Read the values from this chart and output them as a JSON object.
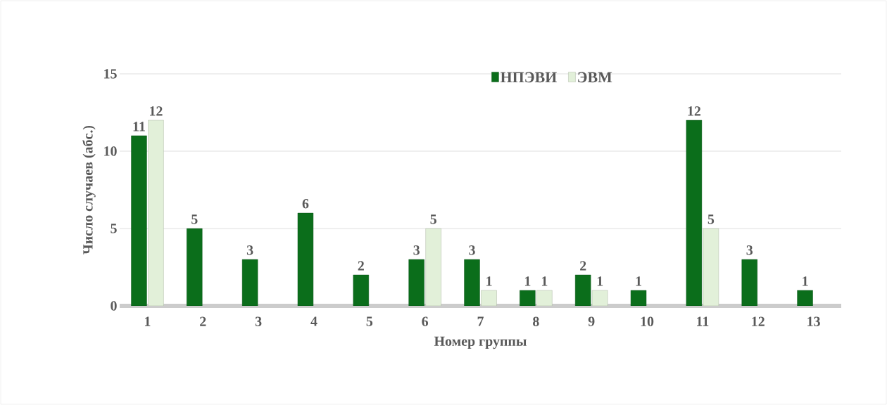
{
  "chart_data": {
    "type": "bar",
    "ylabel": "Число случаев (абс.)",
    "xlabel": "Номер группы",
    "categories": [
      "1",
      "2",
      "3",
      "4",
      "5",
      "6",
      "7",
      "8",
      "9",
      "10",
      "11",
      "12",
      "13"
    ],
    "series": [
      {
        "name": "НПЭВИ",
        "color": "#0b6e1b",
        "values": [
          11,
          5,
          3,
          6,
          2,
          3,
          3,
          1,
          2,
          1,
          12,
          3,
          1
        ]
      },
      {
        "name": "ЭВМ",
        "color": "#e2f0d9",
        "values": [
          12,
          null,
          null,
          null,
          null,
          5,
          1,
          1,
          1,
          null,
          5,
          null,
          null
        ]
      }
    ],
    "ylim": [
      0,
      15
    ],
    "yticks": [
      0,
      5,
      10,
      15
    ],
    "grid": "y",
    "legend": "top",
    "data_labels": true
  }
}
